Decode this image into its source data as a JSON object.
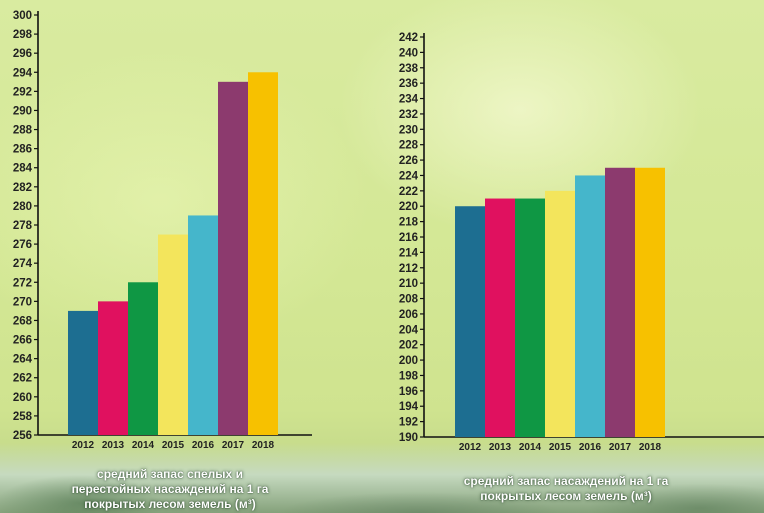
{
  "colors": {
    "bar_colors": [
      "#1d6e91",
      "#e0115f",
      "#0f9744",
      "#f3e55c",
      "#45b6cb",
      "#8c3a6e",
      "#f7c100"
    ],
    "axis": "#111111",
    "tick_label": "#222222",
    "caption_text": "#ffffff"
  },
  "chart_data": [
    {
      "type": "bar",
      "categories": [
        "2012",
        "2013",
        "2014",
        "2015",
        "2016",
        "2017",
        "2018"
      ],
      "values": [
        269,
        270,
        272,
        277,
        279,
        293,
        294
      ],
      "ylim": [
        256,
        300
      ],
      "ytick_step": 2,
      "yticks": [
        "256",
        "258",
        "260",
        "262",
        "264",
        "266",
        "268",
        "270",
        "272",
        "274",
        "276",
        "278",
        "280",
        "282",
        "284",
        "286",
        "288",
        "290",
        "292",
        "294",
        "296",
        "298",
        "300"
      ],
      "caption": [
        "средний запас спелых и",
        "перестойных насаждений на 1 га",
        "покрытых лесом земель (м³)"
      ],
      "grid": false
    },
    {
      "type": "bar",
      "categories": [
        "2012",
        "2013",
        "2014",
        "2015",
        "2016",
        "2017",
        "2018"
      ],
      "values": [
        220,
        221,
        221,
        222,
        224,
        225,
        225
      ],
      "ylim": [
        190,
        242
      ],
      "ytick_step": 2,
      "yticks": [
        "190",
        "192",
        "194",
        "196",
        "198",
        "200",
        "202",
        "204",
        "206",
        "208",
        "210",
        "212",
        "214",
        "216",
        "218",
        "220",
        "222",
        "224",
        "226",
        "228",
        "230",
        "232",
        "234",
        "236",
        "238",
        "240",
        "242"
      ],
      "caption": [
        "средний запас насаждений на 1 га",
        "покрытых лесом земель (м³)"
      ],
      "grid": false
    }
  ]
}
